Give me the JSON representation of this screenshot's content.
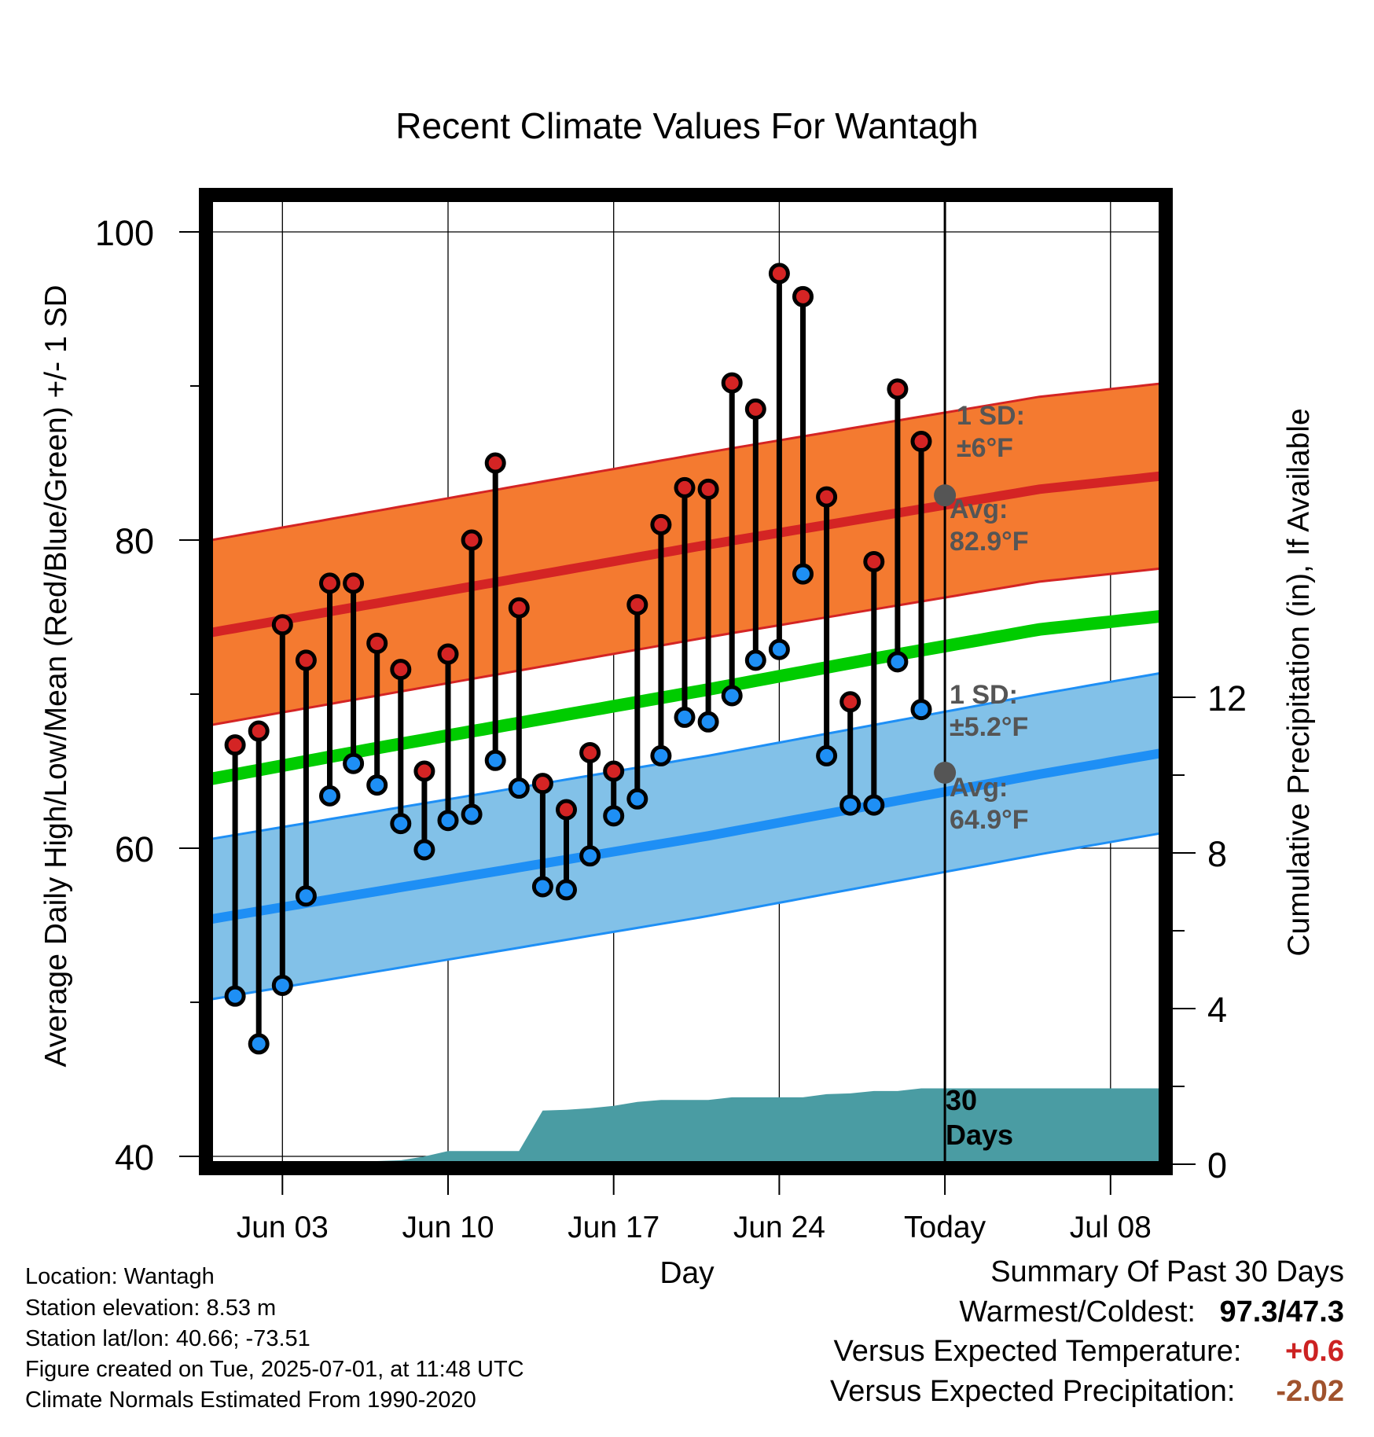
{
  "chart_data": {
    "type": "line",
    "title": "Recent Climate Values For Wantagh",
    "xlabel": "Day",
    "ylabel": "Average Daily High/Low/Mean (Red/Blue/Green) +/- 1 SD",
    "y2label": "Cumulative Precipitation (in), If Available",
    "ylim": [
      40,
      100
    ],
    "y2lim": [
      0,
      24
    ],
    "xlim": [
      "2025-05-31",
      "2025-07-11"
    ],
    "yticks": [
      "100",
      "80",
      "60",
      "40"
    ],
    "y2ticks": [
      "12",
      "8",
      "4",
      "0"
    ],
    "xtick_labels": [
      {
        "date": "2025-06-03",
        "label": "Jun 03"
      },
      {
        "date": "2025-06-10",
        "label": "Jun 10"
      },
      {
        "date": "2025-06-17",
        "label": "Jun 17"
      },
      {
        "date": "2025-06-24",
        "label": "Jun 24"
      },
      {
        "date": "2025-07-01",
        "label": "Today"
      },
      {
        "date": "2025-07-08",
        "label": "Jul 08"
      }
    ],
    "today": "2025-07-01",
    "grid": true,
    "normals": {
      "dates": [
        "2025-05-31",
        "2025-06-07",
        "2025-06-14",
        "2025-06-21",
        "2025-06-28",
        "2025-07-05",
        "2025-07-11"
      ],
      "high_avg": [
        74.0,
        75.9,
        77.8,
        79.7,
        81.5,
        83.3,
        84.3
      ],
      "high_sd": 6,
      "mean_avg": [
        64.5,
        66.5,
        68.4,
        70.3,
        72.3,
        74.2,
        75.2
      ],
      "low_avg": [
        55.4,
        57.2,
        59.0,
        60.8,
        62.8,
        64.8,
        66.4
      ],
      "low_sd": 5.2
    },
    "series": [
      {
        "name": "High",
        "dates": [
          "2025-06-01",
          "2025-06-02",
          "2025-06-03",
          "2025-06-04",
          "2025-06-05",
          "2025-06-06",
          "2025-06-07",
          "2025-06-08",
          "2025-06-09",
          "2025-06-10",
          "2025-06-11",
          "2025-06-12",
          "2025-06-13",
          "2025-06-14",
          "2025-06-15",
          "2025-06-16",
          "2025-06-17",
          "2025-06-18",
          "2025-06-19",
          "2025-06-20",
          "2025-06-21",
          "2025-06-22",
          "2025-06-23",
          "2025-06-24",
          "2025-06-25",
          "2025-06-26",
          "2025-06-27",
          "2025-06-28",
          "2025-06-29",
          "2025-06-30"
        ],
        "values": [
          66.7,
          67.6,
          74.5,
          72.2,
          77.2,
          77.2,
          73.3,
          71.6,
          65.0,
          72.6,
          80.0,
          85.0,
          75.6,
          64.2,
          62.5,
          66.2,
          65.0,
          75.8,
          81.0,
          83.4,
          83.3,
          90.2,
          88.5,
          97.3,
          95.8,
          82.8,
          69.5,
          78.6,
          89.8,
          86.4
        ]
      },
      {
        "name": "Low",
        "dates": [
          "2025-06-01",
          "2025-06-02",
          "2025-06-03",
          "2025-06-04",
          "2025-06-05",
          "2025-06-06",
          "2025-06-07",
          "2025-06-08",
          "2025-06-09",
          "2025-06-10",
          "2025-06-11",
          "2025-06-12",
          "2025-06-13",
          "2025-06-14",
          "2025-06-15",
          "2025-06-16",
          "2025-06-17",
          "2025-06-18",
          "2025-06-19",
          "2025-06-20",
          "2025-06-21",
          "2025-06-22",
          "2025-06-23",
          "2025-06-24",
          "2025-06-25",
          "2025-06-26",
          "2025-06-27",
          "2025-06-28",
          "2025-06-29",
          "2025-06-30"
        ],
        "values": [
          50.4,
          47.3,
          51.1,
          56.9,
          63.4,
          65.5,
          64.1,
          61.6,
          59.9,
          61.8,
          62.2,
          65.7,
          63.9,
          57.5,
          57.3,
          59.5,
          62.1,
          63.2,
          66.0,
          68.5,
          68.2,
          69.9,
          72.2,
          72.9,
          77.8,
          66.0,
          62.8,
          62.8,
          72.1,
          69.0
        ]
      }
    ],
    "precipitation": {
      "dates": [
        "2025-06-01",
        "2025-06-06",
        "2025-06-07",
        "2025-06-08",
        "2025-06-09",
        "2025-06-10",
        "2025-06-11",
        "2025-06-12",
        "2025-06-13",
        "2025-06-14",
        "2025-06-15",
        "2025-06-16",
        "2025-06-17",
        "2025-06-18",
        "2025-06-19",
        "2025-06-20",
        "2025-06-21",
        "2025-06-22",
        "2025-06-23",
        "2025-06-24",
        "2025-06-25",
        "2025-06-26",
        "2025-06-27",
        "2025-06-28",
        "2025-06-29",
        "2025-06-30",
        "2025-07-11"
      ],
      "values": [
        0.0,
        0.0,
        0.08,
        0.1,
        0.2,
        0.34,
        0.34,
        0.34,
        0.34,
        1.38,
        1.4,
        1.44,
        1.5,
        1.6,
        1.65,
        1.65,
        1.65,
        1.72,
        1.72,
        1.72,
        1.72,
        1.8,
        1.82,
        1.88,
        1.88,
        1.95,
        1.95
      ]
    },
    "annotations": {
      "high_sd_label": [
        "1 SD:",
        "±6°F"
      ],
      "high_avg_label": [
        "Avg:",
        "82.9°F"
      ],
      "low_sd_label": [
        "1 SD:",
        "±5.2°F"
      ],
      "low_avg_label": [
        "Avg:",
        "64.9°F"
      ],
      "today_high_avg": 82.9,
      "today_low_avg": 64.9,
      "days_label": [
        "30",
        "Days"
      ]
    },
    "colors": {
      "high_band": "#f47a30",
      "high_line": "#d42424",
      "mean_line": "#00cc00",
      "low_band": "#82c1e8",
      "low_line": "#1e8ff5",
      "high_marker": "#d42424",
      "low_marker": "#1e8ff5",
      "precip": "#4a9ca3",
      "annotation": "#555555"
    }
  },
  "info": {
    "location": "Location: Wantagh",
    "elevation": "Station elevation: 8.53 m",
    "latlon": "Station lat/lon: 40.66; -73.51",
    "created": "Figure created on Tue, 2025-07-01, at 11:48 UTC",
    "normals": "Climate Normals Estimated From 1990-2020"
  },
  "summary": {
    "title": "Summary Of Past 30 Days",
    "warmest_coldest_label": "Warmest/Coldest:",
    "warmest_coldest_value": "97.3/47.3",
    "temp_label": "Versus Expected Temperature:",
    "temp_value": "+0.6",
    "temp_color": "#cc2222",
    "precip_label": "Versus Expected Precipitation:",
    "precip_value": "-2.02",
    "precip_color": "#a0522d"
  }
}
